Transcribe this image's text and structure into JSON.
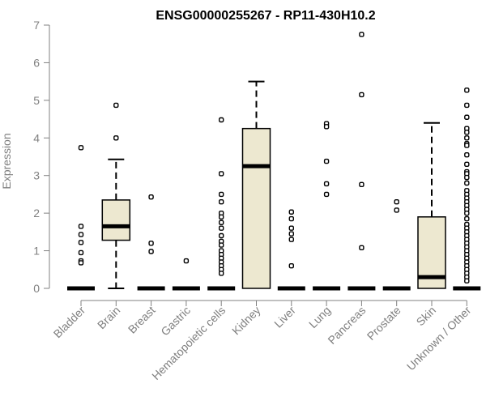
{
  "chart_data": {
    "type": "boxplot",
    "title": "ENSG00000255267 - RP11-430H10.2",
    "xlabel": "",
    "ylabel": "Expression",
    "ylim": [
      0,
      7
    ],
    "yticks": [
      0,
      1,
      2,
      3,
      4,
      5,
      6,
      7
    ],
    "grid": false,
    "box_color": "#ede8d0",
    "outline_color": "#000000",
    "axis_color": "#808080",
    "categories": [
      "Bladder",
      "Brain",
      "Breast",
      "Gastric",
      "Hematopoietic cells",
      "Kidney",
      "Liver",
      "Lung",
      "Pancreas",
      "Prostate",
      "Skin",
      "Unknown / Other"
    ],
    "boxes": [
      {
        "category": "Bladder",
        "min": 0,
        "q1": 0,
        "median": 0,
        "q3": 0,
        "max": 0,
        "outliers": [
          3.74,
          1.65,
          1.43,
          1.22,
          0.95,
          0.73,
          0.68
        ]
      },
      {
        "category": "Brain",
        "min": 0,
        "q1": 1.28,
        "median": 1.65,
        "q3": 2.35,
        "max": 3.43,
        "outliers": [
          4.87,
          4.0
        ]
      },
      {
        "category": "Breast",
        "min": 0,
        "q1": 0,
        "median": 0,
        "q3": 0,
        "max": 0,
        "outliers": [
          2.43,
          1.2,
          0.98
        ]
      },
      {
        "category": "Gastric",
        "min": 0,
        "q1": 0,
        "median": 0,
        "q3": 0,
        "max": 0,
        "outliers": [
          0.73
        ]
      },
      {
        "category": "Hematopoietic cells",
        "min": 0,
        "q1": 0,
        "median": 0,
        "q3": 0,
        "max": 0,
        "outliers": [
          4.48,
          3.05,
          2.5,
          2.3,
          2.0,
          1.9,
          1.75,
          1.6,
          1.4,
          1.25,
          1.15,
          1.0,
          0.9,
          0.8,
          0.7,
          0.6,
          0.5,
          0.4
        ]
      },
      {
        "category": "Kidney",
        "min": 0,
        "q1": 0,
        "median": 3.25,
        "q3": 4.25,
        "max": 5.5,
        "outliers": []
      },
      {
        "category": "Liver",
        "min": 0,
        "q1": 0,
        "median": 0,
        "q3": 0,
        "max": 0,
        "outliers": [
          2.03,
          1.85,
          1.6,
          1.45,
          1.3,
          0.6
        ]
      },
      {
        "category": "Lung",
        "min": 0,
        "q1": 0,
        "median": 0,
        "q3": 0,
        "max": 0,
        "outliers": [
          4.38,
          4.3,
          3.38,
          2.78,
          2.5
        ]
      },
      {
        "category": "Pancreas",
        "min": 0,
        "q1": 0,
        "median": 0,
        "q3": 0,
        "max": 0,
        "outliers": [
          6.75,
          5.15,
          2.76,
          1.08
        ]
      },
      {
        "category": "Prostate",
        "min": 0,
        "q1": 0,
        "median": 0,
        "q3": 0,
        "max": 0,
        "outliers": [
          2.3,
          2.08
        ]
      },
      {
        "category": "Skin",
        "min": 0,
        "q1": 0,
        "median": 0.3,
        "q3": 1.9,
        "max": 4.4,
        "outliers": []
      },
      {
        "category": "Unknown / Other",
        "min": 0,
        "q1": 0,
        "median": 0,
        "q3": 0,
        "max": 0,
        "outliers": [
          5.27,
          4.87,
          4.55,
          4.25,
          4.15,
          4.0,
          3.85,
          3.8,
          3.55,
          3.3,
          3.1,
          3.05,
          2.95,
          2.8,
          2.6,
          2.5,
          2.4,
          2.3,
          2.2,
          2.1,
          2.0,
          1.85,
          1.7,
          1.6,
          1.5,
          1.4,
          1.3,
          1.2,
          1.1,
          1.0,
          0.9,
          0.8,
          0.7,
          0.6,
          0.5,
          0.4,
          0.3,
          0.2
        ]
      }
    ]
  }
}
